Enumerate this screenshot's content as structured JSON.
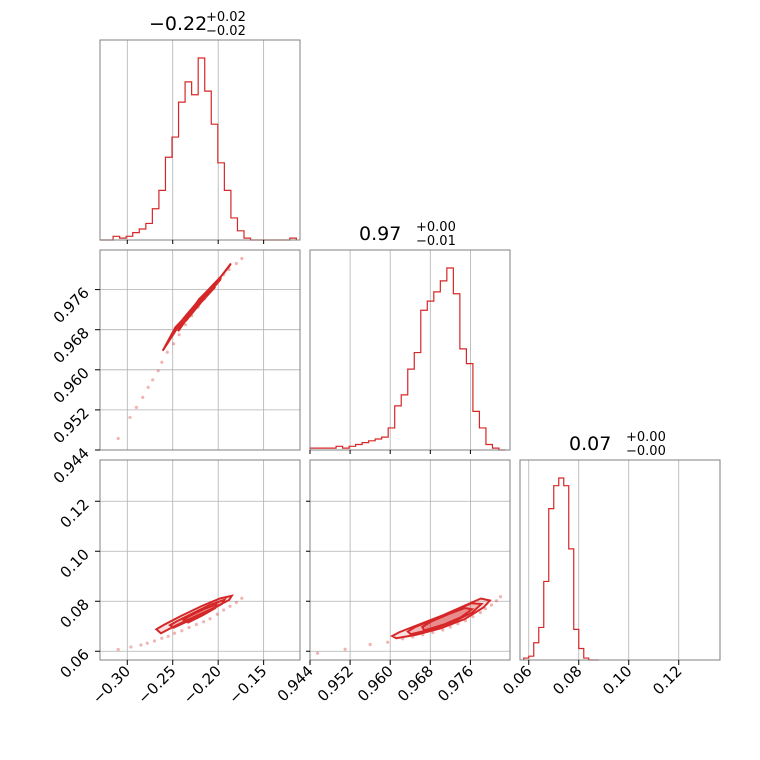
{
  "colors": {
    "series": "#d62728",
    "frame": "#808080",
    "grid": "#b0b0b0"
  },
  "chart_data": {
    "type": "corner",
    "parameters": [
      {
        "title": {
          "value": "−0.22",
          "plus": "+0.02",
          "minus": "−0.02"
        },
        "range": [
          -0.33,
          -0.11
        ],
        "ticks": [
          -0.3,
          -0.25,
          -0.2,
          -0.15
        ],
        "tick_labels": [
          "−0.30",
          "−0.25",
          "−0.20",
          "−0.15"
        ]
      },
      {
        "title": {
          "value": "0.97",
          "plus": "+0.00",
          "minus": "−0.01"
        },
        "range": [
          0.944,
          0.9839
        ],
        "ticks": [
          0.944,
          0.952,
          0.96,
          0.968,
          0.976
        ],
        "tick_labels": [
          "0.944",
          "0.952",
          "0.960",
          "0.968",
          "0.976"
        ]
      },
      {
        "title": {
          "value": "0.07",
          "plus": "+0.00",
          "minus": "−0.00"
        },
        "range": [
          0.0565,
          0.1365
        ],
        "ticks": [
          0.06,
          0.08,
          0.1,
          0.12
        ],
        "tick_labels": [
          "0.06",
          "0.08",
          "0.10",
          "0.12"
        ]
      }
    ],
    "histograms": [
      {
        "param": 0,
        "bin_edges": [
          -0.33,
          -0.3228,
          -0.3156,
          -0.3084,
          -0.3012,
          -0.294,
          -0.2868,
          -0.2796,
          -0.2724,
          -0.2652,
          -0.258,
          -0.2508,
          -0.2436,
          -0.2364,
          -0.2292,
          -0.222,
          -0.2148,
          -0.2076,
          -0.2004,
          -0.1932,
          -0.186,
          -0.1788,
          -0.1716,
          -0.1644,
          -0.1572,
          -0.15,
          -0.1428,
          -0.1356,
          -0.1284,
          -0.1212,
          -0.114
        ],
        "counts": [
          0,
          0,
          0.02,
          0.01,
          0.02,
          0.04,
          0.06,
          0.09,
          0.17,
          0.27,
          0.45,
          0.56,
          0.75,
          0.86,
          0.79,
          0.99,
          0.81,
          0.63,
          0.42,
          0.27,
          0.12,
          0.05,
          0.01,
          0,
          0,
          0,
          0,
          0,
          0,
          0.01
        ]
      },
      {
        "param": 1,
        "bin_edges": [
          0.944,
          0.9453,
          0.9466,
          0.9479,
          0.9492,
          0.9505,
          0.9518,
          0.9531,
          0.9544,
          0.9557,
          0.957,
          0.9583,
          0.9596,
          0.9609,
          0.9622,
          0.9635,
          0.9648,
          0.9661,
          0.9674,
          0.9687,
          0.97,
          0.9713,
          0.9726,
          0.9739,
          0.9752,
          0.9765,
          0.9778,
          0.9791,
          0.9804,
          0.9817,
          0.983
        ],
        "counts": [
          0.01,
          0.01,
          0.01,
          0.01,
          0.02,
          0.01,
          0.02,
          0.03,
          0.04,
          0.05,
          0.06,
          0.07,
          0.12,
          0.24,
          0.3,
          0.44,
          0.53,
          0.76,
          0.81,
          0.86,
          0.92,
          0.99,
          0.85,
          0.55,
          0.47,
          0.21,
          0.12,
          0.03,
          0.01,
          0
        ]
      },
      {
        "param": 2,
        "bin_edges": [
          0.058,
          0.06,
          0.062,
          0.064,
          0.066,
          0.068,
          0.07,
          0.072,
          0.074,
          0.076,
          0.078,
          0.08,
          0.082,
          0.084,
          0.086,
          0.088
        ],
        "counts": [
          0.01,
          0.02,
          0.09,
          0.17,
          0.41,
          0.79,
          0.91,
          0.95,
          0.91,
          0.58,
          0.16,
          0.06,
          0.01,
          0,
          0
        ]
      }
    ],
    "scatter_2d": [
      {
        "x_param": 0,
        "y_param": 1,
        "points": [
          [
            -0.31,
            0.9463
          ],
          [
            -0.297,
            0.9505
          ],
          [
            -0.29,
            0.9525
          ],
          [
            -0.283,
            0.9545
          ],
          [
            -0.277,
            0.9565
          ],
          [
            -0.272,
            0.958
          ],
          [
            -0.266,
            0.9598
          ],
          [
            -0.262,
            0.9615
          ],
          [
            -0.256,
            0.9635
          ],
          [
            -0.249,
            0.9652
          ],
          [
            -0.243,
            0.967
          ],
          [
            -0.236,
            0.969
          ],
          [
            -0.229,
            0.9708
          ],
          [
            -0.222,
            0.9725
          ],
          [
            -0.215,
            0.9742
          ],
          [
            -0.208,
            0.976
          ],
          [
            -0.201,
            0.9775
          ],
          [
            -0.194,
            0.979
          ],
          [
            -0.188,
            0.98
          ],
          [
            -0.18,
            0.9812
          ],
          [
            -0.174,
            0.9822
          ]
        ],
        "contours": [
          [
            [
              -0.261,
              0.9638
            ],
            [
              -0.247,
              0.9685
            ],
            [
              -0.226,
              0.9725
            ],
            [
              -0.205,
              0.9768
            ],
            [
              -0.188,
              0.9806
            ],
            [
              -0.186,
              0.9812
            ],
            [
              -0.197,
              0.9786
            ],
            [
              -0.217,
              0.9748
            ],
            [
              -0.238,
              0.9703
            ],
            [
              -0.256,
              0.9652
            ],
            [
              -0.261,
              0.9638
            ]
          ],
          [
            [
              -0.244,
              0.9677
            ],
            [
              -0.231,
              0.9711
            ],
            [
              -0.214,
              0.9745
            ],
            [
              -0.198,
              0.9779
            ],
            [
              -0.197,
              0.9784
            ],
            [
              -0.211,
              0.9756
            ],
            [
              -0.228,
              0.9721
            ],
            [
              -0.243,
              0.9683
            ],
            [
              -0.244,
              0.9677
            ]
          ],
          [
            [
              -0.234,
              0.9701
            ],
            [
              -0.219,
              0.9734
            ],
            [
              -0.204,
              0.9764
            ],
            [
              -0.206,
              0.9767
            ],
            [
              -0.221,
              0.9741
            ],
            [
              -0.234,
              0.9706
            ],
            [
              -0.234,
              0.9701
            ]
          ]
        ]
      },
      {
        "x_param": 0,
        "y_param": 2,
        "points": [
          [
            -0.31,
            0.0607
          ],
          [
            -0.296,
            0.0617
          ],
          [
            -0.285,
            0.0625
          ],
          [
            -0.278,
            0.0632
          ],
          [
            -0.27,
            0.0641
          ],
          [
            -0.262,
            0.0652
          ],
          [
            -0.255,
            0.066
          ],
          [
            -0.248,
            0.0672
          ],
          [
            -0.24,
            0.0682
          ],
          [
            -0.232,
            0.0695
          ],
          [
            -0.224,
            0.0707
          ],
          [
            -0.216,
            0.0718
          ],
          [
            -0.209,
            0.073
          ],
          [
            -0.201,
            0.0748
          ],
          [
            -0.194,
            0.0765
          ],
          [
            -0.187,
            0.078
          ],
          [
            -0.18,
            0.0795
          ],
          [
            -0.174,
            0.0812
          ]
        ],
        "contours": [
          [
            [
              -0.263,
              0.0672
            ],
            [
              -0.247,
              0.0702
            ],
            [
              -0.226,
              0.0738
            ],
            [
              -0.205,
              0.0773
            ],
            [
              -0.188,
              0.0805
            ],
            [
              -0.185,
              0.0822
            ],
            [
              -0.198,
              0.0811
            ],
            [
              -0.218,
              0.0781
            ],
            [
              -0.241,
              0.0741
            ],
            [
              -0.26,
              0.0705
            ],
            [
              -0.268,
              0.0688
            ],
            [
              -0.263,
              0.0672
            ]
          ],
          [
            [
              -0.249,
              0.0694
            ],
            [
              -0.233,
              0.0721
            ],
            [
              -0.214,
              0.0754
            ],
            [
              -0.196,
              0.0789
            ],
            [
              -0.193,
              0.0806
            ],
            [
              -0.209,
              0.0786
            ],
            [
              -0.228,
              0.0752
            ],
            [
              -0.246,
              0.0719
            ],
            [
              -0.253,
              0.0704
            ],
            [
              -0.249,
              0.0694
            ]
          ],
          [
            [
              -0.233,
              0.0715
            ],
            [
              -0.217,
              0.0744
            ],
            [
              -0.203,
              0.0773
            ],
            [
              -0.202,
              0.0787
            ],
            [
              -0.216,
              0.0768
            ],
            [
              -0.233,
              0.0738
            ],
            [
              -0.238,
              0.0725
            ],
            [
              -0.233,
              0.0715
            ]
          ]
        ]
      },
      {
        "x_param": 1,
        "y_param": 2,
        "points": [
          [
            0.9455,
            0.0592
          ],
          [
            0.951,
            0.0608
          ],
          [
            0.956,
            0.0627
          ],
          [
            0.9595,
            0.0636
          ],
          [
            0.9625,
            0.065
          ],
          [
            0.9645,
            0.0657
          ],
          [
            0.9665,
            0.0666
          ],
          [
            0.9685,
            0.0675
          ],
          [
            0.9705,
            0.0685
          ],
          [
            0.972,
            0.0697
          ],
          [
            0.9735,
            0.071
          ],
          [
            0.975,
            0.0722
          ],
          [
            0.9765,
            0.0738
          ],
          [
            0.978,
            0.0755
          ],
          [
            0.979,
            0.077
          ],
          [
            0.9802,
            0.0785
          ],
          [
            0.9812,
            0.0802
          ],
          [
            0.982,
            0.0818
          ]
        ],
        "contours": [
          [
            [
              0.9612,
              0.0652
            ],
            [
              0.9652,
              0.0666
            ],
            [
              0.9701,
              0.0692
            ],
            [
              0.9749,
              0.0729
            ],
            [
              0.9786,
              0.0775
            ],
            [
              0.9799,
              0.0803
            ],
            [
              0.9781,
              0.0811
            ],
            [
              0.9748,
              0.0782
            ],
            [
              0.9705,
              0.0744
            ],
            [
              0.9656,
              0.0706
            ],
            [
              0.9618,
              0.0676
            ],
            [
              0.9604,
              0.0661
            ],
            [
              0.9612,
              0.0652
            ]
          ],
          [
            [
              0.9641,
              0.0668
            ],
            [
              0.9683,
              0.0688
            ],
            [
              0.9726,
              0.0717
            ],
            [
              0.9764,
              0.0756
            ],
            [
              0.9782,
              0.0789
            ],
            [
              0.9762,
              0.0792
            ],
            [
              0.9728,
              0.0762
            ],
            [
              0.9688,
              0.0727
            ],
            [
              0.9649,
              0.0696
            ],
            [
              0.9635,
              0.0679
            ],
            [
              0.9641,
              0.0668
            ]
          ],
          [
            [
              0.9668,
              0.0683
            ],
            [
              0.9706,
              0.0706
            ],
            [
              0.9741,
              0.0736
            ],
            [
              0.9763,
              0.0768
            ],
            [
              0.9749,
              0.0773
            ],
            [
              0.9716,
              0.0748
            ],
            [
              0.9681,
              0.0718
            ],
            [
              0.9664,
              0.0697
            ],
            [
              0.9668,
              0.0683
            ]
          ]
        ]
      }
    ]
  }
}
